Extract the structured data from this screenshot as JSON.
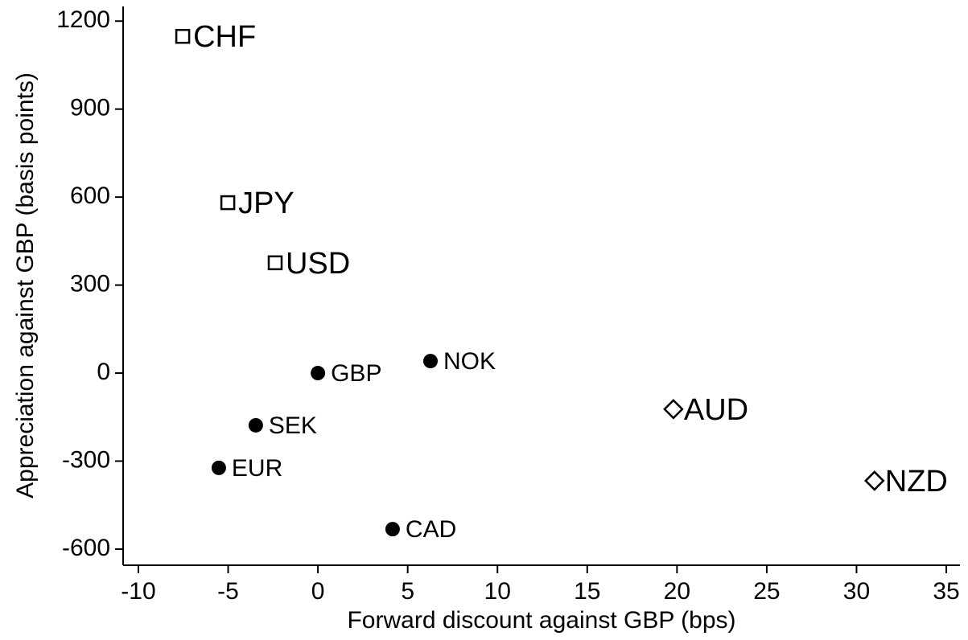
{
  "chart_data": {
    "type": "scatter",
    "x_label": "Forward discount against GBP (bps)",
    "y_label": "Appreciation against GBP (basis points)",
    "labels": [
      "CHF",
      "JPY",
      "USD",
      "GBP",
      "NOK",
      "SEK",
      "EUR",
      "CAD",
      "AUD",
      "NZD"
    ],
    "x": [
      -7.53,
      -5.02,
      -2.38,
      0,
      6.27,
      -3.46,
      -5.52,
      4.16,
      19.8,
      31.0
    ],
    "values": [
      1148,
      581,
      376,
      0,
      41,
      -178,
      -323,
      -532,
      -123,
      -367
    ],
    "markers": [
      "square",
      "square",
      "square",
      "circle",
      "circle",
      "circle",
      "circle",
      "circle",
      "diamond",
      "diamond"
    ],
    "color": "#000000",
    "xlim": [
      -10.85,
      35.76
    ],
    "ylim": [
      -655,
      1250
    ],
    "xticks": [
      -10,
      -5,
      0,
      5,
      10,
      15,
      20,
      25,
      30,
      35
    ],
    "yticks": [
      -600,
      -300,
      0,
      300,
      600,
      900,
      1200
    ],
    "grid": false
  }
}
